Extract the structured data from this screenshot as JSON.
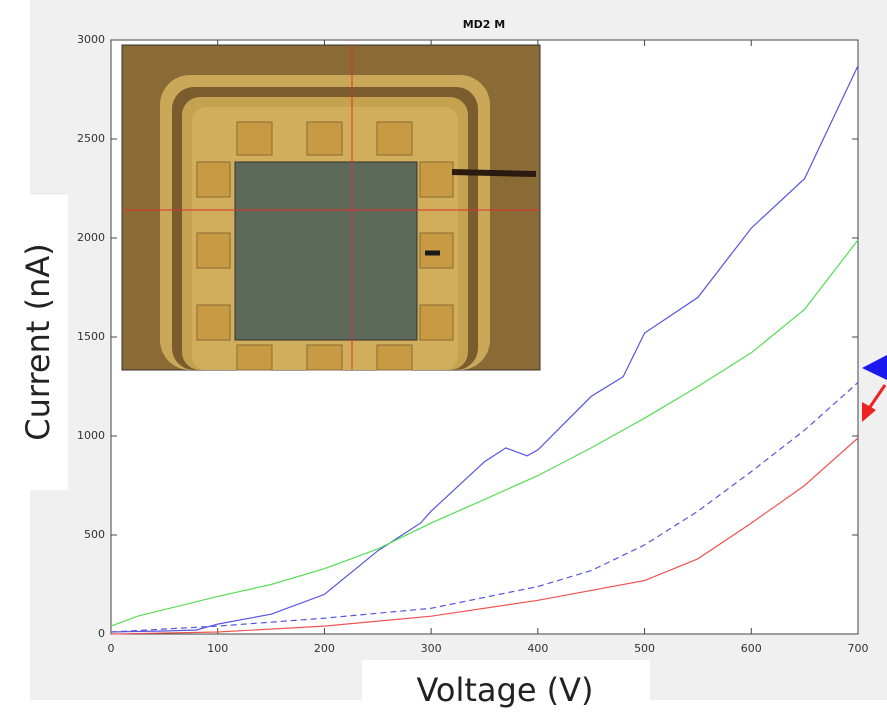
{
  "chart_data": {
    "type": "line",
    "title": "MD2 M",
    "xlabel": "Voltage (V)",
    "ylabel": "Current (nA)",
    "xlim": [
      0,
      700
    ],
    "ylim": [
      0,
      3000
    ],
    "xticks": [
      0,
      100,
      200,
      300,
      400,
      500,
      600,
      700
    ],
    "yticks": [
      0,
      500,
      1000,
      1500,
      2000,
      2500,
      3000
    ],
    "series": [
      {
        "color": "#5555dd",
        "linestyle": "solid",
        "x": [
          0,
          50,
          80,
          100,
          150,
          200,
          250,
          290,
          300,
          350,
          370,
          390,
          400,
          450,
          480,
          500,
          550,
          600,
          650,
          700
        ],
        "values": [
          10,
          15,
          20,
          50,
          100,
          200,
          420,
          560,
          620,
          870,
          940,
          900,
          930,
          1200,
          1300,
          1520,
          1700,
          2050,
          2300,
          2870
        ]
      },
      {
        "color": "#55dd55",
        "linestyle": "solid",
        "x": [
          0,
          25,
          100,
          150,
          200,
          250,
          300,
          350,
          400,
          450,
          500,
          550,
          600,
          650,
          700
        ],
        "values": [
          40,
          90,
          190,
          250,
          330,
          430,
          560,
          680,
          800,
          940,
          1090,
          1250,
          1420,
          1640,
          1990
        ]
      },
      {
        "color": "#5555dd",
        "linestyle": "dashed",
        "x": [
          0,
          100,
          200,
          300,
          400,
          450,
          500,
          550,
          600,
          650,
          700
        ],
        "values": [
          10,
          40,
          80,
          130,
          240,
          320,
          450,
          620,
          820,
          1030,
          1270
        ]
      },
      {
        "color": "#ee5555",
        "linestyle": "solid",
        "x": [
          0,
          100,
          200,
          300,
          400,
          500,
          550,
          600,
          650,
          700
        ],
        "values": [
          0,
          10,
          40,
          90,
          170,
          270,
          380,
          560,
          750,
          990
        ]
      }
    ]
  }
}
